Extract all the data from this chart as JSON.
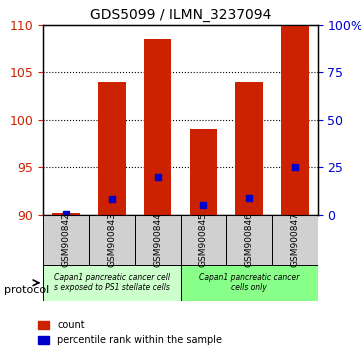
{
  "title": "GDS5099 / ILMN_3237094",
  "samples": [
    "GSM900842",
    "GSM900843",
    "GSM900844",
    "GSM900845",
    "GSM900846",
    "GSM900847"
  ],
  "count_values": [
    90.2,
    104.0,
    108.5,
    99.0,
    104.0,
    110.0
  ],
  "percentile_values": [
    0.5,
    8.0,
    20.0,
    5.0,
    9.0,
    25.0
  ],
  "y_min": 90,
  "y_max": 110,
  "y_ticks": [
    90,
    95,
    100,
    105,
    110
  ],
  "right_y_ticks": [
    0,
    25,
    50,
    75,
    100
  ],
  "right_y_labels": [
    "0",
    "25",
    "50",
    "75",
    "100%"
  ],
  "bar_color": "#cc2200",
  "percentile_color": "#0000cc",
  "bar_width": 0.6,
  "group1_label": "Capan1 pancreatic cancer cell\ns exposed to PS1 stellate cells",
  "group2_label": "Capan1 pancreatic cancer\ncells only",
  "group1_indices": [
    0,
    1,
    2
  ],
  "group2_indices": [
    3,
    4,
    5
  ],
  "group1_color": "#ccffcc",
  "group2_color": "#88ff88",
  "protocol_label": "protocol",
  "legend_count_label": "count",
  "legend_percentile_label": "percentile rank within the sample",
  "background_plot": "#ffffff",
  "grid_color": "#000000",
  "tick_label_color_left": "#cc2200",
  "tick_label_color_right": "#0000cc"
}
